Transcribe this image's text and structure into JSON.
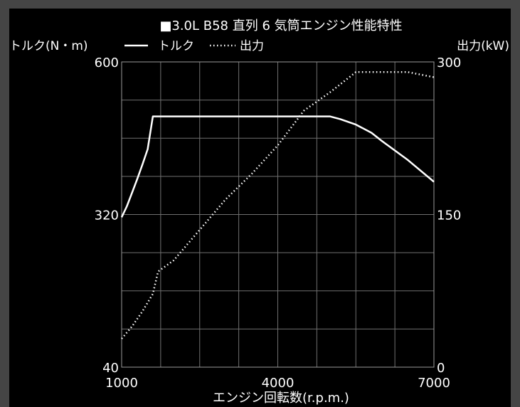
{
  "chart_data": {
    "type": "line",
    "title": "■3.0L B58 直列 6 気筒エンジン性能特性",
    "xlabel": "エンジン回転数(r.p.m.)",
    "ylabel_left": "トルク(N・m)",
    "ylabel_right": "出力(kW)",
    "legend": [
      {
        "label": "トルク",
        "style": "solid"
      },
      {
        "label": "出力",
        "style": "dotted"
      }
    ],
    "legend_prefix_solid": "—",
    "legend_prefix_dotted": "……",
    "xlim": [
      1000,
      7000
    ],
    "x_ticks": [
      "1000",
      "4000",
      "7000"
    ],
    "x_tick_values": [
      1000,
      4000,
      7000
    ],
    "ylim_left": [
      40,
      600
    ],
    "y_ticks_left": [
      "40",
      "320",
      "600"
    ],
    "y_tick_values_left": [
      40,
      320,
      600
    ],
    "ylim_right": [
      0,
      300
    ],
    "y_ticks_right": [
      "0",
      "150",
      "300"
    ],
    "y_tick_values_right": [
      0,
      150,
      300
    ],
    "grid": true,
    "colors": {
      "background": "#000000",
      "line": "#ffffff",
      "grid": "#6f6f6f",
      "outer": "#454545"
    },
    "series": [
      {
        "name": "トルク",
        "axis": "left",
        "style": "solid",
        "x": [
          1000,
          1100,
          1200,
          1300,
          1400,
          1500,
          1600,
          1700,
          1800,
          2000,
          2500,
          3000,
          3500,
          4000,
          4500,
          5000,
          5200,
          5500,
          5800,
          6000,
          6500,
          7000
        ],
        "y": [
          315,
          335,
          360,
          385,
          412,
          440,
          500,
          500,
          500,
          500,
          500,
          500,
          500,
          500,
          500,
          500,
          495,
          485,
          470,
          455,
          420,
          380
        ]
      },
      {
        "name": "出力",
        "axis": "right",
        "style": "dotted",
        "x": [
          1000,
          1200,
          1400,
          1600,
          1700,
          2000,
          2500,
          3000,
          3500,
          4000,
          4500,
          5000,
          5500,
          6000,
          6500,
          7000
        ],
        "y": [
          28,
          40,
          55,
          72,
          94,
          105,
          135,
          165,
          190,
          218,
          252,
          270,
          290,
          290,
          290,
          285
        ]
      }
    ]
  }
}
